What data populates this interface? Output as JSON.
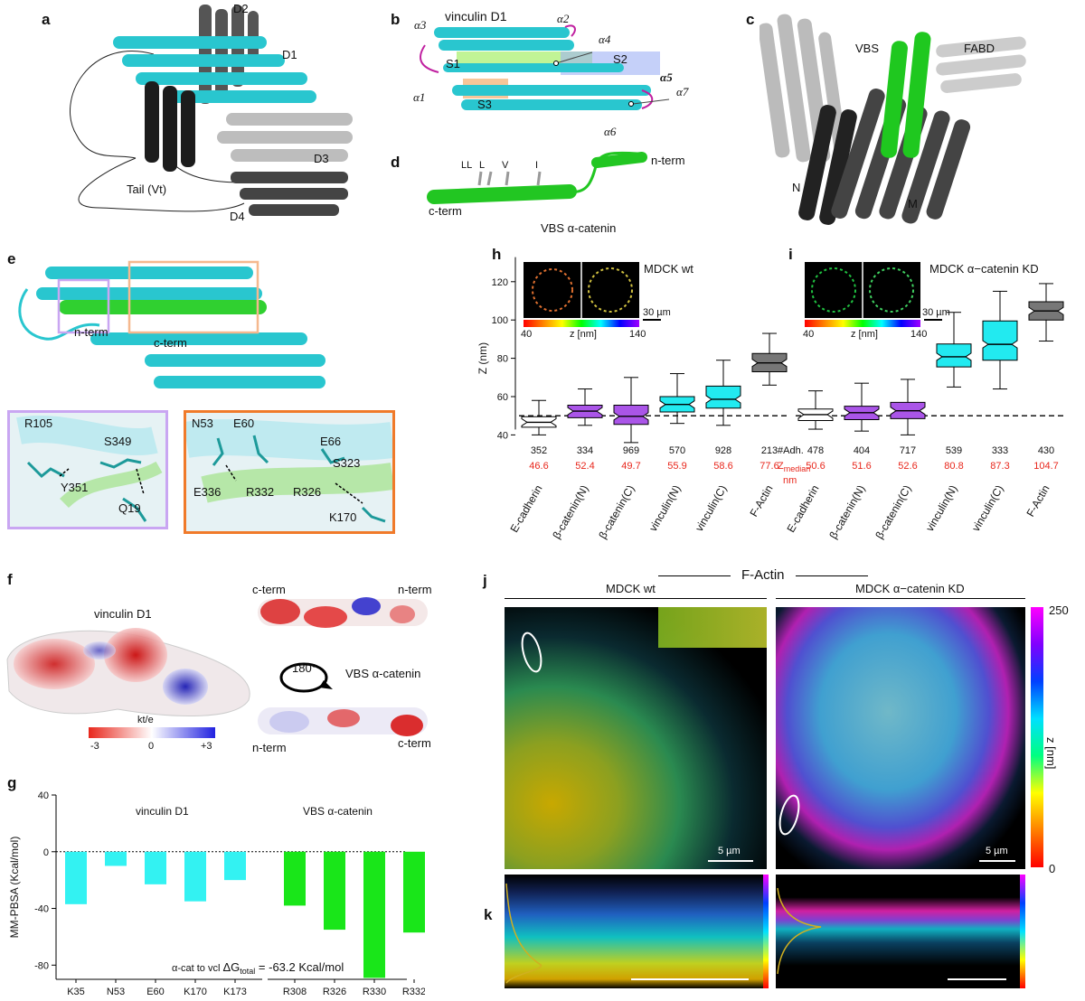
{
  "panels": {
    "a": {
      "label": "a",
      "domains": [
        "D2",
        "D1",
        "D3",
        "D4",
        "Tail (Vt)"
      ]
    },
    "b": {
      "label": "b",
      "title": "vinculin D1",
      "helices": [
        "α3",
        "α2",
        "α4",
        "α5",
        "α1",
        "α7",
        "α6"
      ],
      "sites": [
        "S1",
        "S2",
        "S3"
      ]
    },
    "c": {
      "label": "c",
      "regions": [
        "VBS",
        "FABD",
        "N",
        "M"
      ]
    },
    "d": {
      "label": "d",
      "residues": [
        "LL",
        "L",
        "V",
        "I"
      ],
      "nterm": "n-term",
      "cterm": "c-term",
      "caption": "VBS α-catenin"
    },
    "e": {
      "label": "e",
      "nterm": "n-term",
      "cterm": "c-term",
      "inset_left": [
        "R105",
        "S349",
        "Y351",
        "Q19"
      ],
      "inset_right": [
        "N53",
        "E60",
        "E66",
        "S323",
        "E336",
        "R332",
        "R326",
        "K170"
      ]
    },
    "f": {
      "label": "f",
      "title_left": "vinculin D1",
      "cterm_top": "c-term",
      "nterm_top": "n-term",
      "rotation": "180°",
      "rotation_label": "VBS α-catenin",
      "nterm_bottom": "n-term",
      "cterm_bottom": "c-term",
      "colorbar_unit": "kt/e",
      "colorbar_ticks": [
        "-3",
        "0",
        "+3"
      ],
      "colors": {
        "neg": "#e8271c",
        "mid": "#ffffff",
        "pos": "#2121e0"
      }
    },
    "g": {
      "label": "g",
      "group_left": "vinculin D1",
      "group_right": "VBS α-catenin",
      "ylabel": "MM-PBSA (Kcal/mol)",
      "annotation_prefix": "α-cat to vcl",
      "annotation_dg": "ΔG",
      "annotation_sub": "total",
      "annotation_value": "= -63.2 Kcal/mol",
      "yticks": [
        "40",
        "0",
        "-40",
        "-80"
      ]
    },
    "h": {
      "label": "h",
      "cell": "MDCK wt",
      "scale": "30 µm",
      "zbar_label": "z [nm]",
      "zbar_min": "40",
      "zbar_max": "140",
      "ylabel": "Z (nm)",
      "yticks": [
        "120",
        "100",
        "80",
        "60",
        "40"
      ],
      "row_adh_label": "#Adh.",
      "row_z_label": "Z",
      "row_z_sub": "median",
      "row_z_unit": "nm"
    },
    "i": {
      "label": "i",
      "cell": "MDCK α−catenin KD",
      "scale": "30 µm",
      "zbar_label": "z [nm]",
      "zbar_min": "40",
      "zbar_max": "140"
    },
    "j": {
      "label": "j",
      "header": "F-Actin",
      "left_title": "MDCK wt",
      "right_title": "MDCK α−catenin KD",
      "scale_left": "5 µm",
      "scale_right": "5 µm",
      "cbar_max": "250",
      "cbar_min": "0",
      "cbar_unit": "z [nm]"
    },
    "k": {
      "label": "k"
    }
  },
  "chart_data": [
    {
      "type": "bar",
      "panel": "g",
      "ylabel": "MM-PBSA (Kcal/mol)",
      "ylim": [
        -90,
        40
      ],
      "categories": [
        "K35",
        "N53",
        "E60",
        "K170",
        "K173",
        "R308",
        "R326",
        "R330",
        "R332"
      ],
      "series": [
        {
          "name": "vinculin D1",
          "color": "#33f2f2",
          "values": [
            -37,
            -10,
            -23,
            -35,
            -20,
            null,
            null,
            null,
            null
          ]
        },
        {
          "name": "VBS α-catenin",
          "color": "#19e619",
          "values": [
            null,
            null,
            null,
            null,
            null,
            -38,
            -55,
            -89,
            -57
          ]
        }
      ],
      "reference_line": 0
    },
    {
      "type": "box",
      "panel": "h",
      "ylabel": "Z (nm)",
      "ylim": [
        35,
        135
      ],
      "reference_line": 50,
      "categories": [
        "E-cadherin",
        "β-catenin(N)",
        "β-catenin(C)",
        "vinculin(N)",
        "vinculin(C)",
        "F-Actin"
      ],
      "colors": [
        "#ffffff",
        "#aa55e8",
        "#aa55e8",
        "#22eaf0",
        "#22eaf0",
        "#777777"
      ],
      "adhesions": [
        352,
        334,
        969,
        570,
        928,
        213
      ],
      "adhesions_text": [
        "352",
        "334",
        "969",
        "570",
        "928",
        "213"
      ],
      "median": [
        46.6,
        52.4,
        49.7,
        55.9,
        58.6,
        77.6
      ],
      "median_text": [
        "46.6",
        "52.4",
        "49.7",
        "55.9",
        "58.6",
        "77.6"
      ],
      "q1": [
        44,
        49,
        45.5,
        52,
        54,
        73
      ],
      "q3": [
        49.5,
        55.5,
        55.5,
        60,
        65.5,
        82.5
      ],
      "whisker_low": [
        40,
        45,
        36,
        46,
        45,
        66
      ],
      "whisker_high": [
        58,
        64,
        70,
        72,
        79,
        93
      ]
    },
    {
      "type": "box",
      "panel": "i",
      "ylabel": "Z (nm)",
      "ylim": [
        35,
        135
      ],
      "reference_line": 50,
      "categories": [
        "E-cadherin",
        "β-catenin(N)",
        "β-catenin(C)",
        "vinculin(N)",
        "vinculin(C)",
        "F-Actin"
      ],
      "colors": [
        "#ffffff",
        "#aa55e8",
        "#aa55e8",
        "#22eaf0",
        "#22eaf0",
        "#777777"
      ],
      "adhesions": [
        478,
        404,
        717,
        539,
        333,
        430
      ],
      "adhesions_text": [
        "478",
        "404",
        "717",
        "539",
        "333",
        "430"
      ],
      "median": [
        50.6,
        51.6,
        52.6,
        80.8,
        87.3,
        104.7
      ],
      "median_text": [
        "50.6",
        "51.6",
        "52.6",
        "80.8",
        "87.3",
        "104.7"
      ],
      "q1": [
        47.5,
        48,
        48.5,
        75.5,
        79,
        100
      ],
      "q3": [
        53.5,
        55,
        57,
        87.5,
        99.5,
        109.5
      ],
      "whisker_low": [
        43,
        42,
        40,
        65,
        64,
        89
      ],
      "whisker_high": [
        63,
        67,
        69,
        104,
        115,
        119
      ]
    }
  ]
}
